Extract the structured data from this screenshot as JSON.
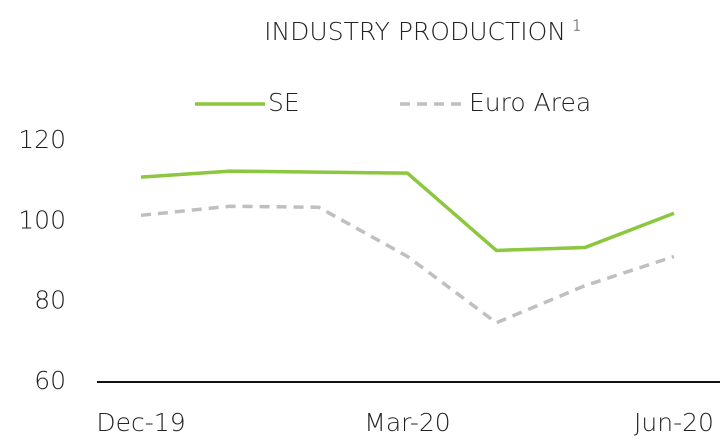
{
  "chart_data": {
    "type": "line",
    "title": "INDUSTRY PRODUCTION",
    "title_footnote": "1",
    "categories": [
      "Dec-19",
      null,
      null,
      "Mar-20",
      null,
      null,
      "Jun-20"
    ],
    "series": [
      {
        "name": "SE",
        "color": "#8dc63f",
        "style": "solid",
        "values": [
          111,
          112.5,
          112.25,
          112,
          92.75,
          93.5,
          102
        ]
      },
      {
        "name": "Euro Area",
        "color": "#bfbfbf",
        "style": "dashed",
        "values": [
          101.5,
          103.75,
          103.5,
          91.25,
          74.75,
          84,
          91.25
        ]
      }
    ],
    "ylim": [
      60,
      120
    ],
    "yticks": [
      60,
      80,
      100,
      120
    ],
    "grid": false,
    "legend": "top"
  }
}
